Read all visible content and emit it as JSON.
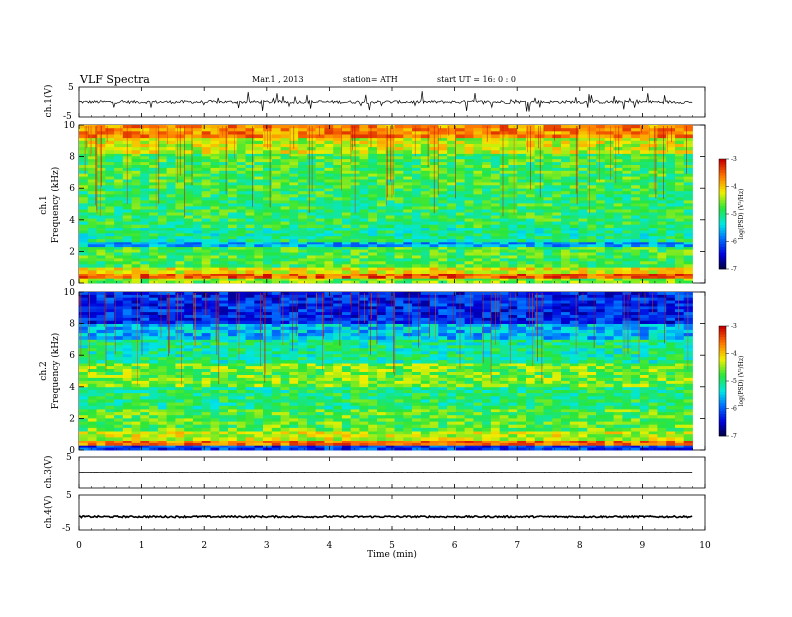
{
  "header": {
    "title": "VLF  Spectra",
    "date": "Mar.1  , 2013",
    "station": "station= ATH",
    "start": "start  UT  =    16: 0  : 0"
  },
  "chart_data": [
    {
      "type": "line",
      "panel": "ch1-waveform",
      "ylabel": "ch.1(V)",
      "ylim": [
        -5,
        5
      ],
      "yticks": [
        "5",
        "-5"
      ],
      "baseline": 0,
      "noise_amplitude": 0.5,
      "spike_amplitude": 3.5,
      "color": "#000000"
    },
    {
      "type": "heatmap",
      "panel": "ch1-spectrogram",
      "ylabel": "ch.1\nFrequency  (kHz)",
      "ylim": [
        0,
        10
      ],
      "yticks": [
        "0",
        "2",
        "4",
        "6",
        "8",
        "10"
      ],
      "colorbar": {
        "label": "log(PSD) (V²/Hz)",
        "range": [
          -7,
          -3
        ],
        "ticks": [
          "-3",
          "-4",
          "-5",
          "-6",
          "-7"
        ]
      },
      "bands": [
        {
          "from": 0.0,
          "to": 0.3,
          "level": -4.6
        },
        {
          "from": 0.3,
          "to": 0.6,
          "level": -3.5
        },
        {
          "from": 0.6,
          "to": 1.0,
          "level": -4.2
        },
        {
          "from": 1.0,
          "to": 2.3,
          "level": -4.8
        },
        {
          "from": 2.3,
          "to": 2.6,
          "level": -5.7
        },
        {
          "from": 2.6,
          "to": 3.5,
          "level": -5.1
        },
        {
          "from": 3.5,
          "to": 6.0,
          "level": -4.9
        },
        {
          "from": 6.0,
          "to": 8.2,
          "level": -4.8
        },
        {
          "from": 8.2,
          "to": 9.2,
          "level": -4.3
        },
        {
          "from": 9.2,
          "to": 10.0,
          "level": -3.7
        }
      ]
    },
    {
      "type": "heatmap",
      "panel": "ch2-spectrogram",
      "ylabel": "ch.2\nFrequency  (kHz)",
      "ylim": [
        0,
        10
      ],
      "yticks": [
        "0",
        "2",
        "4",
        "6",
        "8",
        "10"
      ],
      "colorbar": {
        "label": "log(PSD) (V²/Hz)",
        "range": [
          -7,
          -3
        ],
        "ticks": [
          "-3",
          "-4",
          "-5",
          "-6",
          "-7"
        ]
      },
      "bands": [
        {
          "from": 0.0,
          "to": 0.3,
          "level": -6.2
        },
        {
          "from": 0.3,
          "to": 0.6,
          "level": -3.6
        },
        {
          "from": 0.6,
          "to": 1.2,
          "level": -4.3
        },
        {
          "from": 1.2,
          "to": 2.6,
          "level": -4.7
        },
        {
          "from": 2.6,
          "to": 4.0,
          "level": -5.0
        },
        {
          "from": 4.0,
          "to": 5.5,
          "level": -4.6
        },
        {
          "from": 5.5,
          "to": 7.0,
          "level": -5.1
        },
        {
          "from": 7.0,
          "to": 8.0,
          "level": -5.6
        },
        {
          "from": 8.0,
          "to": 10.0,
          "level": -6.3
        }
      ]
    },
    {
      "type": "line",
      "panel": "ch3-waveform",
      "ylabel": "ch.3(V)",
      "ylim": [
        -5,
        5
      ],
      "yticks": [
        "5",
        "-5"
      ],
      "baseline": 0,
      "noise_amplitude": 0.05,
      "color": "#000000"
    },
    {
      "type": "line",
      "panel": "ch4-waveform",
      "ylabel": "ch.4(V)",
      "ylim": [
        -5,
        5
      ],
      "yticks": [
        "5",
        "-5"
      ],
      "baseline": -1.2,
      "noise_amplitude": 0.25,
      "color": "#000000"
    }
  ],
  "xaxis": {
    "label": "Time  (min)",
    "xlim": [
      0,
      10
    ],
    "data_end": 9.8,
    "ticks": [
      "0",
      "1",
      "2",
      "3",
      "4",
      "5",
      "6",
      "7",
      "8",
      "9",
      "10"
    ]
  }
}
